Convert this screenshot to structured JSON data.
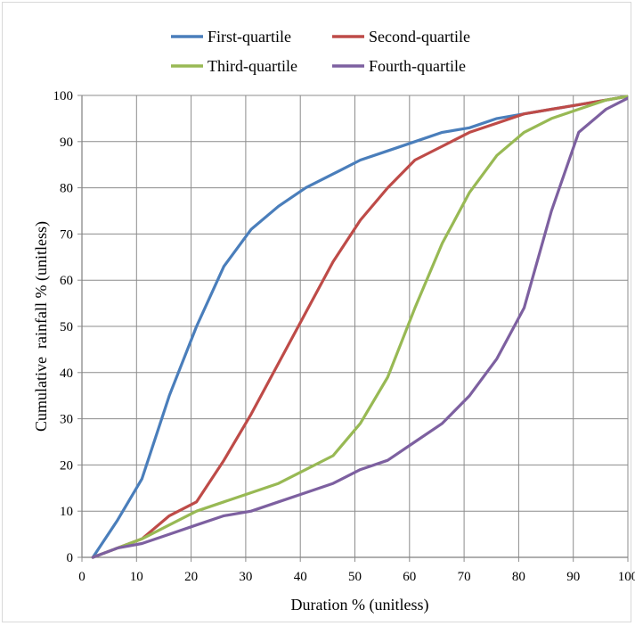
{
  "chart_data": {
    "type": "line",
    "xlabel": "Duration % (unitless)",
    "ylabel": "Cumulative  rainfall % (unitless)",
    "xlim": [
      0,
      100
    ],
    "ylim": [
      0,
      100
    ],
    "x_ticks": [
      0,
      10,
      20,
      30,
      40,
      50,
      60,
      70,
      80,
      90,
      100
    ],
    "y_ticks": [
      0,
      10,
      20,
      30,
      40,
      50,
      60,
      70,
      80,
      90,
      100
    ],
    "grid": true,
    "legend_position": "top",
    "series": [
      {
        "name": "First-quartile",
        "color": "#4a7ebb",
        "points": [
          [
            2,
            0
          ],
          [
            6.5,
            8
          ],
          [
            11,
            17
          ],
          [
            16,
            35
          ],
          [
            21,
            50
          ],
          [
            26,
            63
          ],
          [
            31,
            71
          ],
          [
            36,
            76
          ],
          [
            41,
            80
          ],
          [
            46,
            83
          ],
          [
            51,
            86
          ],
          [
            56,
            88
          ],
          [
            61,
            90
          ],
          [
            66,
            92
          ],
          [
            71,
            93
          ],
          [
            76,
            95
          ],
          [
            81,
            96
          ],
          [
            86,
            97
          ],
          [
            91,
            98
          ],
          [
            96,
            99
          ],
          [
            101,
            100
          ]
        ]
      },
      {
        "name": "Second-quartile",
        "color": "#be4b48",
        "points": [
          [
            2,
            0
          ],
          [
            6.5,
            2
          ],
          [
            11,
            4
          ],
          [
            16,
            9
          ],
          [
            21,
            12
          ],
          [
            26,
            21
          ],
          [
            31,
            31
          ],
          [
            36,
            42
          ],
          [
            41,
            53
          ],
          [
            46,
            64
          ],
          [
            51,
            73
          ],
          [
            56,
            80
          ],
          [
            61,
            86
          ],
          [
            66,
            89
          ],
          [
            71,
            92
          ],
          [
            76,
            94
          ],
          [
            81,
            96
          ],
          [
            86,
            97
          ],
          [
            91,
            98
          ],
          [
            96,
            99
          ],
          [
            101,
            100
          ]
        ]
      },
      {
        "name": "Third-quartile",
        "color": "#98b954",
        "points": [
          [
            2,
            0
          ],
          [
            6.5,
            2
          ],
          [
            11,
            4
          ],
          [
            16,
            7
          ],
          [
            21,
            10
          ],
          [
            26,
            12
          ],
          [
            31,
            14
          ],
          [
            36,
            16
          ],
          [
            41,
            19
          ],
          [
            46,
            22
          ],
          [
            51,
            29
          ],
          [
            56,
            39
          ],
          [
            61,
            54
          ],
          [
            66,
            68
          ],
          [
            71,
            79
          ],
          [
            76,
            87
          ],
          [
            81,
            92
          ],
          [
            86,
            95
          ],
          [
            91,
            97
          ],
          [
            96,
            99
          ],
          [
            101,
            100
          ]
        ]
      },
      {
        "name": "Fourth-quartile",
        "color": "#7d60a0",
        "points": [
          [
            2,
            0
          ],
          [
            6.5,
            2
          ],
          [
            11,
            3
          ],
          [
            16,
            5
          ],
          [
            21,
            7
          ],
          [
            26,
            9
          ],
          [
            31,
            10
          ],
          [
            36,
            12
          ],
          [
            41,
            14
          ],
          [
            46,
            16
          ],
          [
            51,
            19
          ],
          [
            56,
            21
          ],
          [
            61,
            25
          ],
          [
            66,
            29
          ],
          [
            71,
            35
          ],
          [
            76,
            43
          ],
          [
            81,
            54
          ],
          [
            86,
            75
          ],
          [
            91,
            92
          ],
          [
            96,
            97
          ],
          [
            101,
            100
          ]
        ]
      }
    ]
  }
}
